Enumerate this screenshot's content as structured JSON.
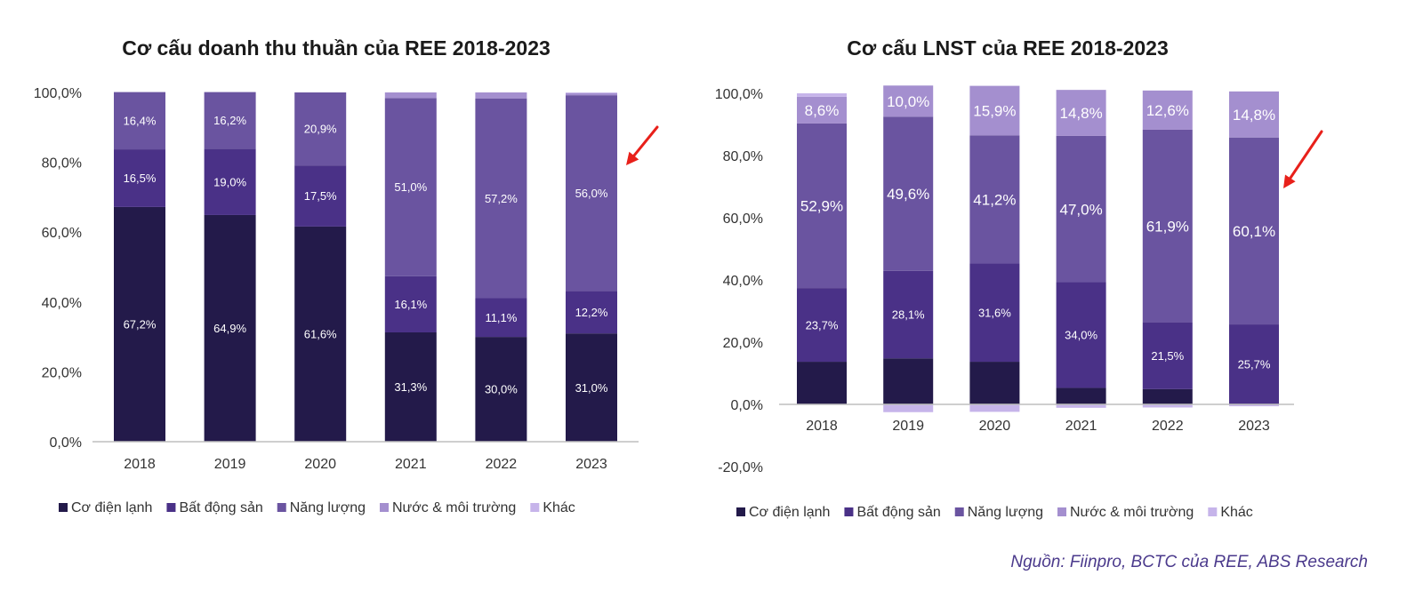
{
  "colors": {
    "co_dien_lanh": "#231a4a",
    "bat_dong_san": "#4a3187",
    "nang_luong": "#6a54a0",
    "nuoc_moi_truong": "#a48fcf",
    "khac": "#c6b4ea",
    "arrow": "#e8201a",
    "axis": "#bfbfbf"
  },
  "chart_data": [
    {
      "type": "bar",
      "stacked": true,
      "title": "Cơ cấu doanh thu thuần của REE 2018-2023",
      "categories": [
        "2018",
        "2019",
        "2020",
        "2021",
        "2022",
        "2023"
      ],
      "ylim": [
        0,
        100
      ],
      "yticks": [
        "0,0%",
        "20,0%",
        "40,0%",
        "60,0%",
        "80,0%",
        "100,0%"
      ],
      "series": [
        {
          "name": "Cơ điện lạnh",
          "values": [
            67.2,
            64.9,
            61.6,
            31.3,
            30.0,
            31.0
          ],
          "labels": [
            "67,2%",
            "64,9%",
            "61,6%",
            "31,3%",
            "30,0%",
            "31,0%"
          ]
        },
        {
          "name": "Bất động sản",
          "values": [
            16.5,
            19.0,
            17.5,
            16.1,
            11.1,
            12.2
          ],
          "labels": [
            "16,5%",
            "19,0%",
            "17,5%",
            "16,1%",
            "11,1%",
            "12,2%"
          ]
        },
        {
          "name": "Năng lượng",
          "values": [
            16.4,
            16.2,
            20.9,
            51.0,
            57.2,
            56.0
          ],
          "labels": [
            "16,4%",
            "16,2%",
            "20,9%",
            "51,0%",
            "57,2%",
            "56,0%"
          ]
        },
        {
          "name": "Nước & môi trường",
          "values": [
            0,
            0,
            0,
            1.6,
            1.7,
            0.6
          ],
          "labels": [
            "",
            "",
            "",
            "",
            "",
            ""
          ]
        },
        {
          "name": "Khác",
          "values": [
            0,
            0,
            0,
            0,
            0,
            0.2
          ],
          "labels": [
            "",
            "",
            "",
            "",
            "",
            ""
          ]
        }
      ],
      "legend": "bottom",
      "annotation": "arrow pointing at 2023 bar"
    },
    {
      "type": "bar",
      "stacked": true,
      "title": "Cơ cấu LNST của REE 2018-2023",
      "categories": [
        "2018",
        "2019",
        "2020",
        "2021",
        "2022",
        "2023"
      ],
      "ylim": [
        -20,
        100
      ],
      "yticks": [
        "-20,0%",
        "0,0%",
        "20,0%",
        "40,0%",
        "60,0%",
        "80,0%",
        "100,0%"
      ],
      "series": [
        {
          "name": "Cơ điện lạnh",
          "values": [
            13.7,
            14.8,
            13.7,
            5.3,
            4.9,
            0
          ],
          "labels": [
            "",
            "",
            "",
            "",
            "",
            ""
          ]
        },
        {
          "name": "Bất động sản",
          "values": [
            23.7,
            28.1,
            31.6,
            34.0,
            21.5,
            25.7
          ],
          "labels": [
            "23,7%",
            "28,1%",
            "31,6%",
            "34,0%",
            "21,5%",
            "25,7%"
          ]
        },
        {
          "name": "Năng lượng",
          "values": [
            52.9,
            49.6,
            41.2,
            47.0,
            61.9,
            60.1
          ],
          "labels": [
            "52,9%",
            "49,6%",
            "41,2%",
            "47,0%",
            "61,9%",
            "60,1%"
          ]
        },
        {
          "name": "Nước & môi trường",
          "values": [
            8.6,
            10.0,
            15.9,
            14.8,
            12.6,
            14.8
          ],
          "labels": [
            "8,6%",
            "10,0%",
            "15,9%",
            "14,8%",
            "12,6%",
            "14,8%"
          ]
        },
        {
          "name": "Khác",
          "values": [
            1.1,
            -2.5,
            -2.4,
            -1.1,
            -1.0,
            -0.6
          ],
          "labels": [
            "",
            "",
            "",
            "",
            "",
            ""
          ]
        }
      ],
      "legend": "bottom",
      "annotation": "arrow pointing at 2023 bar"
    }
  ],
  "source_note": "Nguồn: Fiinpro, BCTC của REE, ABS Research"
}
